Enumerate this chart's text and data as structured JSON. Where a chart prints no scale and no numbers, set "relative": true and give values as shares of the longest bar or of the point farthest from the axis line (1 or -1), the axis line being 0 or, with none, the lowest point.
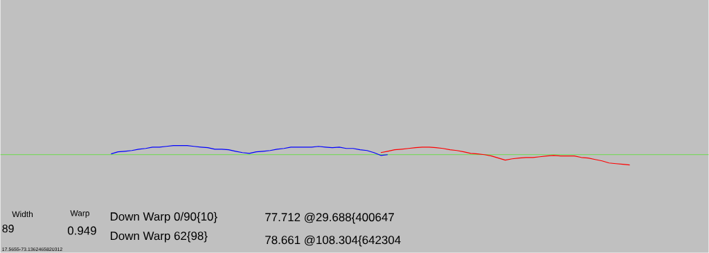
{
  "chart_data": {
    "type": "line",
    "relative": true,
    "categories": [
      null,
      null,
      null,
      null,
      null,
      null,
      null,
      null,
      null,
      null,
      null,
      null,
      null,
      null,
      null,
      null,
      null,
      null,
      null,
      null,
      null,
      null,
      null,
      null,
      null,
      null,
      null,
      null,
      null,
      null,
      null,
      null,
      null,
      null,
      null,
      null,
      null,
      null,
      null,
      null,
      null,
      null,
      null,
      null,
      null,
      null,
      null,
      null,
      null,
      null,
      null,
      null,
      null,
      null,
      null,
      null,
      null,
      null,
      null,
      null,
      null,
      null,
      null,
      null,
      null,
      null,
      null,
      null,
      null,
      null,
      null,
      null,
      null,
      null,
      null,
      null
    ],
    "series": [
      {
        "color": "#0000ff",
        "values": [
          0.07,
          0.27,
          0.33,
          0.4,
          0.53,
          0.6,
          0.73,
          0.73,
          0.8,
          0.87,
          0.87,
          0.87,
          0.8,
          0.73,
          0.67,
          0.53,
          0.53,
          0.47,
          0.33,
          0.2,
          0.13,
          0.27,
          0.33,
          0.4,
          0.53,
          0.6,
          0.73,
          0.73,
          0.73,
          0.73,
          0.8,
          0.73,
          0.67,
          0.73,
          0.6,
          0.6,
          0.47,
          0.4,
          0.2,
          -0.07,
          0,
          null,
          null,
          null,
          null,
          null,
          null,
          null,
          null,
          null,
          null,
          null,
          null,
          null,
          null,
          null,
          null,
          null,
          null,
          null,
          null,
          null,
          null,
          null,
          null,
          null,
          null,
          null,
          null,
          null,
          null,
          null,
          null,
          null,
          null,
          null
        ]
      },
      {
        "color": "#ff0000",
        "values": [
          null,
          null,
          null,
          null,
          null,
          null,
          null,
          null,
          null,
          null,
          null,
          null,
          null,
          null,
          null,
          null,
          null,
          null,
          null,
          null,
          null,
          null,
          null,
          null,
          null,
          null,
          null,
          null,
          null,
          null,
          null,
          null,
          null,
          null,
          null,
          null,
          null,
          null,
          null,
          0.2,
          0.33,
          0.47,
          0.53,
          0.6,
          0.67,
          0.73,
          0.73,
          0.67,
          0.6,
          0.47,
          0.4,
          0.27,
          0.13,
          0.07,
          0,
          -0.13,
          -0.33,
          -0.53,
          -0.4,
          -0.33,
          -0.27,
          -0.27,
          -0.2,
          -0.13,
          -0.07,
          -0.13,
          -0.13,
          -0.13,
          -0.27,
          -0.33,
          -0.47,
          -0.6,
          -0.8,
          -0.87,
          -0.93,
          -1
        ]
      }
    ],
    "ref_lines": [
      {
        "axis": "y",
        "value": 0,
        "color": "#66dd44"
      }
    ],
    "annotations": [
      "Width",
      "Warp",
      "89",
      "0.949",
      "Down Warp 0/90{10}",
      "Down Warp 62{98}",
      "77.712 @29.688{400647",
      "78.661 @108.304{642304",
      "17.5655-73.1362465820312"
    ]
  }
}
